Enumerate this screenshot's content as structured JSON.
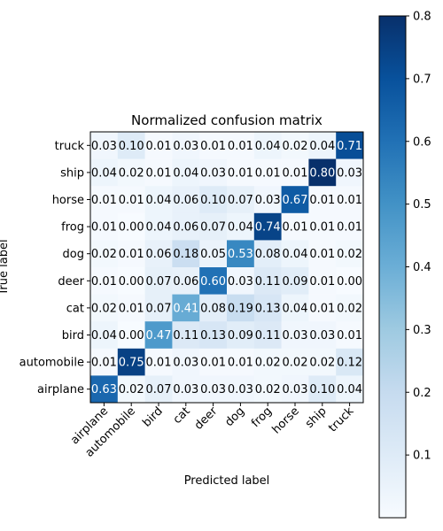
{
  "chart_data": {
    "type": "heatmap",
    "title": "Normalized confusion matrix",
    "xlabel": "Predicted label",
    "ylabel": "True label",
    "x_categories": [
      "airplane",
      "automobile",
      "bird",
      "cat",
      "deer",
      "dog",
      "frog",
      "horse",
      "ship",
      "truck"
    ],
    "y_categories_top_to_bottom": [
      "truck",
      "ship",
      "horse",
      "frog",
      "dog",
      "deer",
      "cat",
      "bird",
      "automobile",
      "airplane"
    ],
    "values_top_to_bottom": [
      [
        0.03,
        0.1,
        0.01,
        0.03,
        0.01,
        0.01,
        0.04,
        0.02,
        0.04,
        0.71
      ],
      [
        0.04,
        0.02,
        0.01,
        0.04,
        0.03,
        0.01,
        0.01,
        0.01,
        0.8,
        0.03
      ],
      [
        0.01,
        0.01,
        0.04,
        0.06,
        0.1,
        0.07,
        0.03,
        0.67,
        0.01,
        0.01
      ],
      [
        0.01,
        0.0,
        0.04,
        0.06,
        0.07,
        0.04,
        0.74,
        0.01,
        0.01,
        0.01
      ],
      [
        0.02,
        0.01,
        0.06,
        0.18,
        0.05,
        0.53,
        0.08,
        0.04,
        0.01,
        0.02
      ],
      [
        0.01,
        0.0,
        0.07,
        0.06,
        0.6,
        0.03,
        0.11,
        0.09,
        0.01,
        0.0
      ],
      [
        0.02,
        0.01,
        0.07,
        0.41,
        0.08,
        0.19,
        0.13,
        0.04,
        0.01,
        0.02
      ],
      [
        0.04,
        0.0,
        0.47,
        0.11,
        0.13,
        0.09,
        0.11,
        0.03,
        0.03,
        0.01
      ],
      [
        0.01,
        0.75,
        0.01,
        0.03,
        0.01,
        0.01,
        0.02,
        0.02,
        0.02,
        0.12
      ],
      [
        0.63,
        0.02,
        0.07,
        0.03,
        0.03,
        0.03,
        0.02,
        0.03,
        0.1,
        0.04
      ]
    ],
    "value_format": "0.00",
    "colormap": "Blues",
    "colormap_stops": [
      "#f7fbff",
      "#deebf7",
      "#c6dbef",
      "#9ecae1",
      "#6baed6",
      "#4292c6",
      "#2171b5",
      "#08519c",
      "#08306b"
    ],
    "colorbar": {
      "range": [
        0.0,
        0.8
      ],
      "ticks": [
        0.1,
        0.2,
        0.3,
        0.4,
        0.5,
        0.6,
        0.7,
        0.8
      ],
      "tick_labels": [
        "0.1",
        "0.2",
        "0.3",
        "0.4",
        "0.5",
        "0.6",
        "0.7",
        "0.8"
      ]
    },
    "text_colors": {
      "light": "#ffffff",
      "dark": "#000000"
    },
    "grid": false
  }
}
